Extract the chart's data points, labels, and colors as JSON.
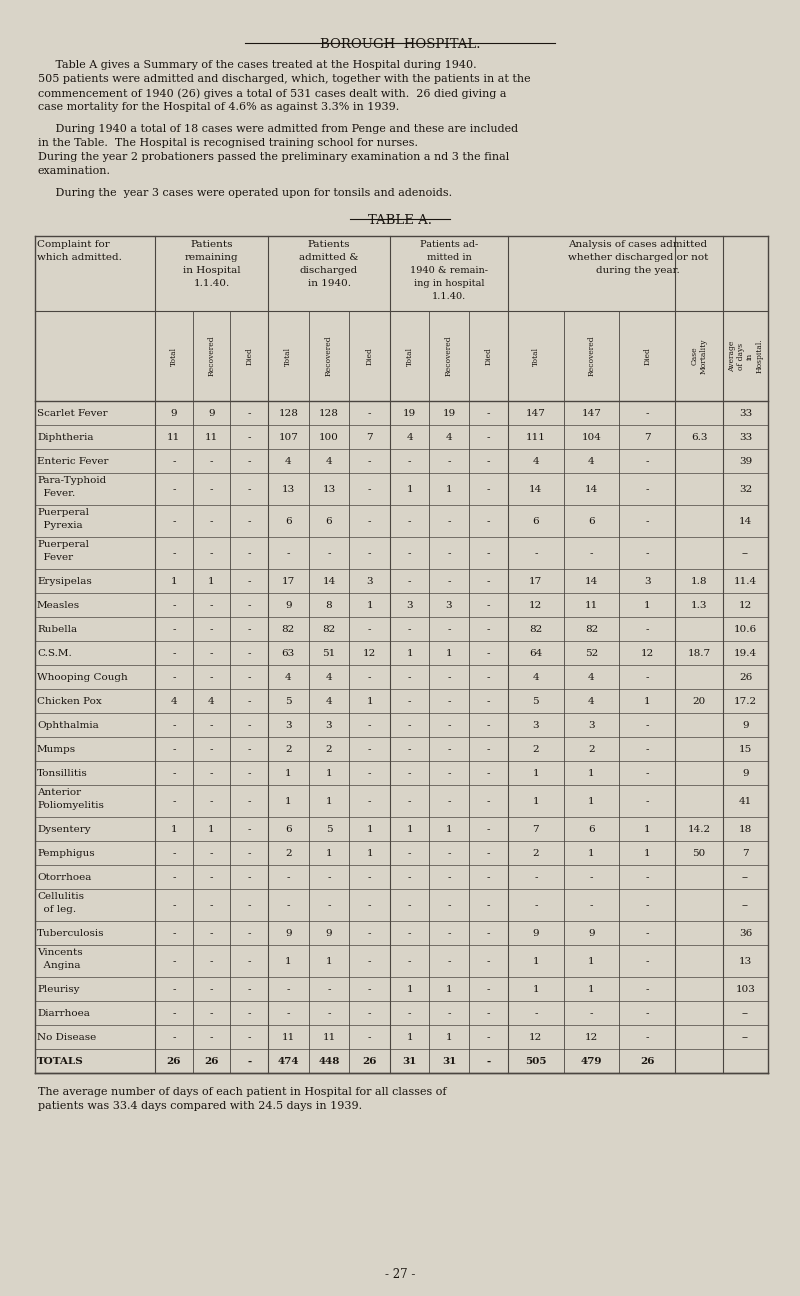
{
  "title": "BOROUGH  HOSPITAL.",
  "intro_blocks": [
    "     Table A gives a Summary of the cases treated at the Hospital during 1940.\n505 patients were admitted and discharged, which, together with the patients in at the\ncommencement of 1940 (26) gives a total of 531 cases dealt with.  26 died giving a\ncase mortality for the Hospital of 4.6% as against 3.3% in 1939.",
    "     During 1940 a total of 18 cases were admitted from Penge and these are included\nin the Table.  The Hospital is recognised training school for nurses.\nDuring the year 2 probationers passed the preliminary examination a nd 3 the final\nexamination.",
    "     During the  year 3 cases were operated upon for tonsils and adenoids."
  ],
  "table_title": "TABLE A.",
  "rows": [
    [
      "Scarlet Fever",
      "9",
      "9",
      "-",
      "128",
      "128",
      "-",
      "19",
      "19",
      "-",
      "147",
      "147",
      "-",
      "",
      "33"
    ],
    [
      "Diphtheria",
      "11",
      "11",
      "-",
      "107",
      "100",
      "7",
      "4",
      "4",
      "-",
      "111",
      "104",
      "7",
      "6.3",
      "33"
    ],
    [
      "Enteric Fever",
      "-",
      "-",
      "-",
      "4",
      "4",
      "-",
      "-",
      "-",
      "-",
      "4",
      "4",
      "-",
      "",
      "39"
    ],
    [
      "Para-Typhoid\n  Fever.",
      "-",
      "-",
      "-",
      "13",
      "13",
      "-",
      "1",
      "1",
      "-",
      "14",
      "14",
      "-",
      "",
      "32"
    ],
    [
      "Puerperal\n  Pyrexia",
      "-",
      "-",
      "-",
      "6",
      "6",
      "-",
      "-",
      "-",
      "-",
      "6",
      "6",
      "-",
      "",
      "14"
    ],
    [
      "Puerperal\n  Fever",
      "-",
      "-",
      "-",
      "-",
      "-",
      "-",
      "-",
      "-",
      "-",
      "-",
      "-",
      "-",
      "",
      "--"
    ],
    [
      "Erysipelas",
      "1",
      "1",
      "-",
      "17",
      "14",
      "3",
      "-",
      "-",
      "-",
      "17",
      "14",
      "3",
      "1.8",
      "11.4"
    ],
    [
      "Measles",
      "-",
      "-",
      "-",
      "9",
      "8",
      "1",
      "3",
      "3",
      "-",
      "12",
      "11",
      "1",
      "1.3",
      "12"
    ],
    [
      "Rubella",
      "-",
      "-",
      "-",
      "82",
      "82",
      "-",
      "-",
      "-",
      "-",
      "82",
      "82",
      "-",
      "",
      "10.6"
    ],
    [
      "C.S.M.",
      "-",
      "-",
      "-",
      "63",
      "51",
      "12",
      "1",
      "1",
      "-",
      "64",
      "52",
      "12",
      "18.7",
      "19.4"
    ],
    [
      "Whooping Cough",
      "-",
      "-",
      "-",
      "4",
      "4",
      "-",
      "-",
      "-",
      "-",
      "4",
      "4",
      "-",
      "",
      "26"
    ],
    [
      "Chicken Pox",
      "4",
      "4",
      "-",
      "5",
      "4",
      "1",
      "-",
      "-",
      "-",
      "5",
      "4",
      "1",
      "20",
      "17.2"
    ],
    [
      "Ophthalmia",
      "-",
      "-",
      "-",
      "3",
      "3",
      "-",
      "-",
      "-",
      "-",
      "3",
      "3",
      "-",
      "",
      "9"
    ],
    [
      "Mumps",
      "-",
      "-",
      "-",
      "2",
      "2",
      "-",
      "-",
      "-",
      "-",
      "2",
      "2",
      "-",
      "",
      "15"
    ],
    [
      "Tonsillitis",
      "-",
      "-",
      "-",
      "1",
      "1",
      "-",
      "-",
      "-",
      "-",
      "1",
      "1",
      "-",
      "",
      "9"
    ],
    [
      "Anterior\nPoliomyelitis",
      "-",
      "-",
      "-",
      "1",
      "1",
      "-",
      "-",
      "-",
      "-",
      "1",
      "1",
      "-",
      "",
      "41"
    ],
    [
      "Dysentery",
      "1",
      "1",
      "-",
      "6",
      "5",
      "1",
      "1",
      "1",
      "-",
      "7",
      "6",
      "1",
      "14.2",
      "18"
    ],
    [
      "Pemphigus",
      "-",
      "-",
      "-",
      "2",
      "1",
      "1",
      "-",
      "-",
      "-",
      "2",
      "1",
      "1",
      "50",
      "7"
    ],
    [
      "Otorrhoea",
      "-",
      "-",
      "-",
      "-",
      "-",
      "-",
      "-",
      "-",
      "-",
      "-",
      "-",
      "-",
      "",
      "--"
    ],
    [
      "Cellulitis\n  of leg.",
      "-",
      "-",
      "-",
      "-",
      "-",
      "-",
      "-",
      "-",
      "-",
      "-",
      "-",
      "-",
      "",
      "--"
    ],
    [
      "Tuberculosis",
      "-",
      "-",
      "-",
      "9",
      "9",
      "-",
      "-",
      "-",
      "-",
      "9",
      "9",
      "-",
      "",
      "36"
    ],
    [
      "Vincents\n  Angina",
      "-",
      "-",
      "-",
      "1",
      "1",
      "-",
      "-",
      "-",
      "-",
      "1",
      "1",
      "-",
      "",
      "13"
    ],
    [
      "Pleurisy",
      "-",
      "-",
      "-",
      "-",
      "-",
      "-",
      "1",
      "1",
      "-",
      "1",
      "1",
      "-",
      "",
      "103"
    ],
    [
      "Diarrhoea",
      "-",
      "-",
      "-",
      "-",
      "-",
      "-",
      "-",
      "-",
      "-",
      "-",
      "-",
      "-",
      "",
      "--"
    ],
    [
      "No Disease",
      "-",
      "-",
      "-",
      "11",
      "11",
      "-",
      "1",
      "1",
      "-",
      "12",
      "12",
      "-",
      "",
      "--"
    ],
    [
      "TOTALS",
      "26",
      "26",
      "-",
      "474",
      "448",
      "26",
      "31",
      "31",
      "-",
      "505",
      "479",
      "26",
      "",
      ""
    ]
  ],
  "footer_text": [
    "The average number of days of each patient in Hospital for all classes of",
    "patients was 33.4 days compared with 24.5 days in 1939."
  ],
  "page_number": "- 27 -",
  "bg_color": "#d9d4c8",
  "text_color": "#1a1510",
  "line_color": "#4a4540"
}
